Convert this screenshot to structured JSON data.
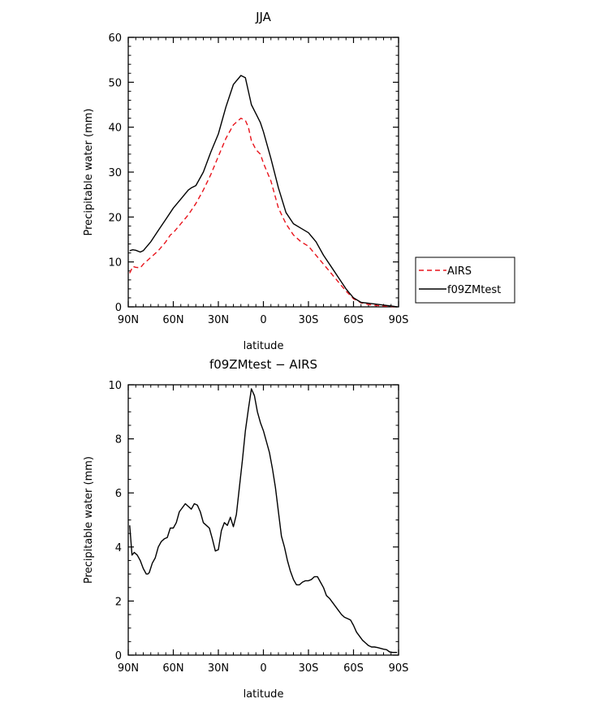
{
  "chart_data": [
    {
      "type": "line",
      "title": "JJA",
      "xlabel": "latitude",
      "ylabel": "Precipitable water (mm)",
      "xlim": [
        90,
        -90
      ],
      "ylim": [
        0,
        60
      ],
      "xticks": [
        90,
        60,
        30,
        0,
        -30,
        -60,
        -90
      ],
      "xtick_labels": [
        "90N",
        "60N",
        "30N",
        "0",
        "30S",
        "60S",
        "90S"
      ],
      "yticks": [
        0,
        10,
        20,
        30,
        40,
        50,
        60
      ],
      "ytick_labels": [
        "0",
        "10",
        "20",
        "30",
        "40",
        "50",
        "60"
      ],
      "legend_position": "right",
      "series": [
        {
          "name": "AIRS",
          "color": "#e8141c",
          "dash": "dashed",
          "x": [
            89,
            87,
            85,
            82,
            80,
            75,
            70,
            65,
            62,
            60,
            55,
            50,
            45,
            40,
            35,
            30,
            25,
            20,
            15,
            12,
            10,
            8,
            5,
            2,
            0,
            -5,
            -10,
            -15,
            -20,
            -25,
            -30,
            -35,
            -40,
            -45,
            -50,
            -55,
            -60,
            -65,
            -70,
            -75,
            -80,
            -85,
            -89
          ],
          "y": [
            7.5,
            9,
            8.8,
            8.7,
            9.5,
            11,
            12.5,
            14.5,
            16,
            16.5,
            18.5,
            20.5,
            23,
            26,
            29.5,
            33.5,
            37.5,
            40.5,
            42,
            41.5,
            40,
            37,
            35,
            34,
            32,
            28,
            22,
            18.5,
            16,
            14.5,
            13.5,
            11.5,
            9.5,
            7.5,
            5.5,
            3.5,
            1.8,
            0.9,
            0.5,
            0.3,
            0.2,
            0.1,
            0
          ]
        },
        {
          "name": "f09ZMtest",
          "color": "#000000",
          "dash": "solid",
          "x": [
            89,
            87,
            85,
            82,
            80,
            75,
            70,
            65,
            60,
            55,
            50,
            48,
            45,
            40,
            35,
            30,
            25,
            20,
            15,
            12,
            10,
            8,
            5,
            2,
            0,
            -5,
            -10,
            -15,
            -20,
            -25,
            -30,
            -35,
            -40,
            -45,
            -50,
            -55,
            -60,
            -65,
            -70,
            -75,
            -80,
            -85,
            -89
          ],
          "y": [
            12.5,
            12.7,
            12.6,
            12.2,
            12.5,
            14.5,
            17,
            19.5,
            22,
            24,
            26,
            26.5,
            27,
            30,
            34.5,
            38.5,
            44.5,
            49.5,
            51.5,
            51,
            48,
            45,
            43,
            41,
            39,
            33,
            26.5,
            21,
            18.5,
            17.5,
            16.5,
            14.5,
            11.5,
            9,
            6.5,
            4,
            2,
            1,
            0.8,
            0.6,
            0.4,
            0.2,
            0
          ]
        }
      ]
    },
    {
      "type": "line",
      "title": "f09ZMtest  −  AIRS",
      "xlabel": "latitude",
      "ylabel": "Precipitable water (mm)",
      "xlim": [
        90,
        -90
      ],
      "ylim": [
        0,
        10
      ],
      "xticks": [
        90,
        60,
        30,
        0,
        -30,
        -60,
        -90
      ],
      "xtick_labels": [
        "90N",
        "60N",
        "30N",
        "0",
        "30S",
        "60S",
        "90S"
      ],
      "yticks": [
        0,
        2,
        4,
        6,
        8,
        10
      ],
      "ytick_labels": [
        "0",
        "2",
        "4",
        "6",
        "8",
        "10"
      ],
      "series": [
        {
          "name": "f09ZMtest - AIRS",
          "color": "#000000",
          "dash": "solid",
          "x": [
            89,
            87.5,
            86,
            84,
            82,
            80,
            78,
            77,
            76,
            74,
            72,
            70,
            68,
            66,
            64,
            62,
            60,
            58,
            56,
            54,
            52,
            50,
            48,
            46,
            44,
            42,
            40,
            38,
            36,
            34,
            32,
            30,
            28,
            26,
            24,
            22,
            20,
            18,
            16,
            14,
            12,
            10,
            8,
            6,
            4,
            2,
            0,
            -2,
            -4,
            -6,
            -8,
            -10,
            -12,
            -14,
            -16,
            -18,
            -20,
            -22,
            -24,
            -26,
            -28,
            -30,
            -32,
            -34,
            -36,
            -38,
            -40,
            -42,
            -44,
            -46,
            -48,
            -50,
            -52,
            -54,
            -56,
            -58,
            -60,
            -62,
            -64,
            -66,
            -68,
            -70,
            -72,
            -74,
            -76,
            -78,
            -80,
            -82,
            -84,
            -86,
            -88,
            -89
          ],
          "y": [
            4.8,
            3.7,
            3.8,
            3.7,
            3.5,
            3.2,
            3.0,
            3.0,
            3.05,
            3.4,
            3.6,
            4.0,
            4.2,
            4.3,
            4.35,
            4.7,
            4.7,
            4.9,
            5.3,
            5.45,
            5.6,
            5.5,
            5.4,
            5.6,
            5.55,
            5.3,
            4.9,
            4.8,
            4.7,
            4.3,
            3.85,
            3.9,
            4.6,
            4.9,
            4.8,
            5.1,
            4.75,
            5.2,
            6.2,
            7.2,
            8.3,
            9.1,
            9.85,
            9.6,
            9.0,
            8.6,
            8.3,
            7.9,
            7.5,
            6.9,
            6.2,
            5.3,
            4.4,
            4.0,
            3.5,
            3.1,
            2.8,
            2.6,
            2.6,
            2.7,
            2.75,
            2.75,
            2.8,
            2.9,
            2.9,
            2.7,
            2.5,
            2.2,
            2.1,
            1.95,
            1.8,
            1.65,
            1.5,
            1.4,
            1.35,
            1.3,
            1.1,
            0.85,
            0.7,
            0.55,
            0.45,
            0.35,
            0.3,
            0.3,
            0.28,
            0.25,
            0.22,
            0.2,
            0.12,
            0.1,
            0.1,
            0.1
          ]
        }
      ]
    }
  ]
}
